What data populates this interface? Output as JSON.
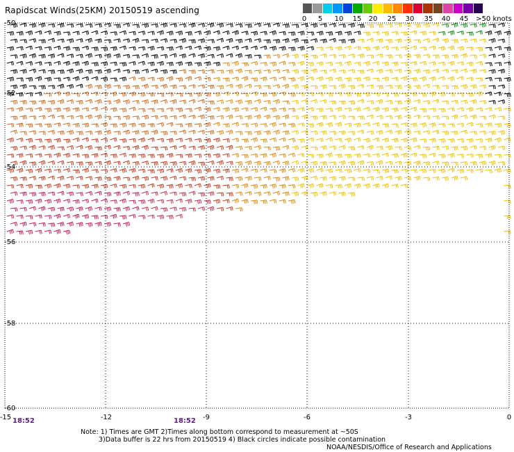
{
  "title": "Rapidscat Winds(25KM) 20150519 ascending",
  "legend": {
    "colors": [
      "#555555",
      "#999999",
      "#00ccee",
      "#0099ff",
      "#0044dd",
      "#00aa00",
      "#66cc00",
      "#ffee00",
      "#ffbb00",
      "#ff8800",
      "#ff3300",
      "#dd0033",
      "#aa3300",
      "#774422",
      "#dd44aa",
      "#cc00cc",
      "#7700aa",
      "#2a0055"
    ],
    "labels": [
      "0",
      "5",
      "10",
      "15",
      "20",
      "25",
      "30",
      "35",
      "40",
      "45",
      ">50 knots"
    ]
  },
  "map": {
    "lon_ticks": [
      "-15",
      "-12",
      "-9",
      "-6",
      "-3",
      "0"
    ],
    "lat_ticks": [
      "-50",
      "-52",
      "-54",
      "-56",
      "-58",
      "-60"
    ]
  },
  "time_labels": [
    "18:52",
    "18:52"
  ],
  "notes": [
    "Note: 1) Times are GMT 2)Times along bottom correspond to measurement at ~50S",
    "3)Data buffer is 22 hrs from 20150519 4) Black circles indicate possible contamination"
  ],
  "credit": "NOAA/NESDIS/Office of Research and Applications",
  "icons": {
    "wind_barb": "wind-barb-icon"
  }
}
